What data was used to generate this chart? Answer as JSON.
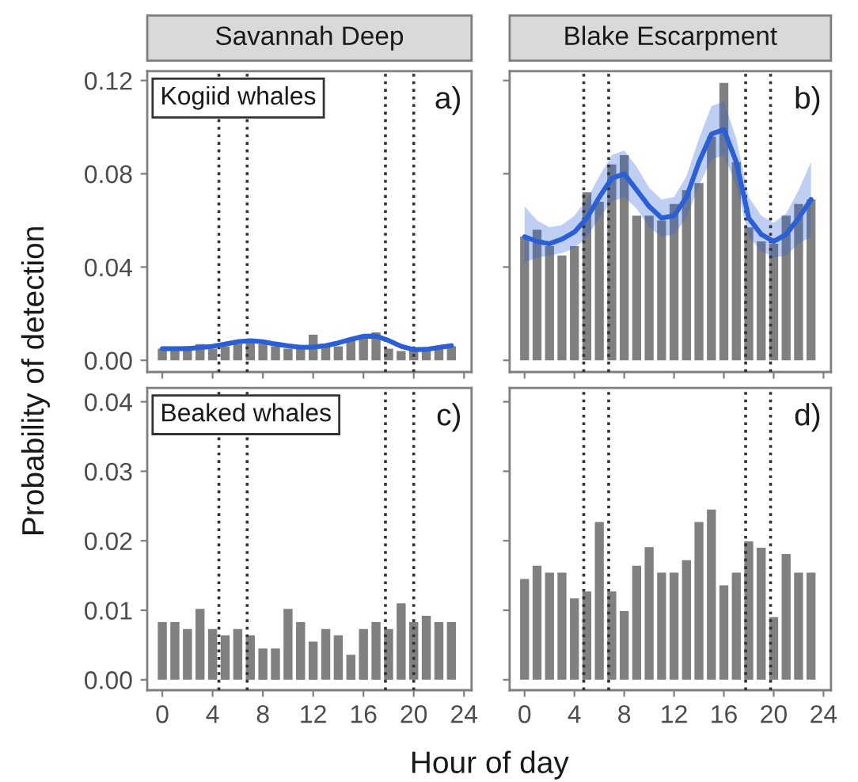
{
  "chart_data": [
    {
      "type": "bar",
      "title": "Savannah Deep",
      "ylabel": "Probability of detection",
      "annotations": [
        "Kogiid whales",
        "a)"
      ],
      "tick_labels": "y",
      "x": [
        0,
        1,
        2,
        3,
        4,
        5,
        6,
        7,
        8,
        9,
        10,
        11,
        12,
        13,
        14,
        15,
        16,
        17,
        18,
        19,
        20,
        21,
        22,
        23
      ],
      "series": [
        {
          "color": "#808080",
          "values": [
            0.005,
            0.005,
            0.006,
            0.007,
            0.005,
            0.006,
            0.007,
            0.009,
            0.007,
            0.006,
            0.005,
            0.005,
            0.011,
            0.006,
            0.006,
            0.009,
            0.011,
            0.012,
            0.005,
            0.004,
            0.005,
            0.005,
            0.006,
            0.006
          ]
        },
        {
          "type": "line",
          "color": "#2a5fd6",
          "x": [
            0,
            1,
            2,
            3,
            4,
            5,
            6,
            7,
            8,
            9,
            10,
            11,
            12,
            13,
            14,
            15,
            16,
            17,
            18,
            19,
            20,
            21,
            22,
            23
          ],
          "values": [
            0.005,
            0.005,
            0.005,
            0.0055,
            0.006,
            0.007,
            0.008,
            0.0084,
            0.008,
            0.007,
            0.0062,
            0.0056,
            0.0057,
            0.0063,
            0.0075,
            0.009,
            0.0103,
            0.0104,
            0.0085,
            0.006,
            0.0046,
            0.0047,
            0.0055,
            0.0063
          ],
          "lower": [
            0.004,
            0.004,
            0.004,
            0.0045,
            0.005,
            0.006,
            0.007,
            0.0074,
            0.007,
            0.006,
            0.0052,
            0.0046,
            0.0047,
            0.0053,
            0.0065,
            0.008,
            0.0093,
            0.0094,
            0.0075,
            0.005,
            0.0036,
            0.0037,
            0.0045,
            0.0052
          ],
          "upper": [
            0.006,
            0.006,
            0.006,
            0.0065,
            0.007,
            0.008,
            0.009,
            0.0094,
            0.009,
            0.008,
            0.0072,
            0.0066,
            0.0067,
            0.0073,
            0.0085,
            0.01,
            0.0113,
            0.0114,
            0.0095,
            0.007,
            0.0056,
            0.0057,
            0.0065,
            0.0074
          ]
        }
      ],
      "xlim": [
        -1.2,
        24.6
      ],
      "xticks": [
        0,
        4,
        8,
        12,
        16,
        20,
        24
      ],
      "ylim": [
        -0.005,
        0.124
      ],
      "yticks": [
        {
          "value": 0,
          "label": "0.00"
        },
        {
          "value": 0.04,
          "label": "0.04"
        },
        {
          "value": 0.08,
          "label": "0.08"
        },
        {
          "value": 0.12,
          "label": "0.12"
        }
      ],
      "ref_lines": [
        {
          "axis": "x",
          "value": 4.5,
          "line_style": "dotted",
          "color": "#333333"
        },
        {
          "axis": "x",
          "value": 6.75,
          "line_style": "dotted",
          "color": "#333333"
        },
        {
          "axis": "x",
          "value": 17.75,
          "line_style": "dotted",
          "color": "#333333"
        },
        {
          "axis": "x",
          "value": 20,
          "line_style": "dotted",
          "color": "#333333"
        }
      ]
    },
    {
      "type": "bar",
      "title": "Blake Escarpment",
      "annotations": [
        "b)"
      ],
      "tick_labels": false,
      "x": [
        0,
        1,
        2,
        3,
        4,
        5,
        6,
        7,
        8,
        9,
        10,
        11,
        12,
        13,
        14,
        15,
        16,
        17,
        18,
        19,
        20,
        21,
        22,
        23
      ],
      "series": [
        {
          "color": "#808080",
          "values": [
            0.053,
            0.056,
            0.049,
            0.045,
            0.049,
            0.072,
            0.068,
            0.084,
            0.088,
            0.062,
            0.062,
            0.06,
            0.067,
            0.073,
            0.076,
            0.096,
            0.119,
            0.085,
            0.057,
            0.051,
            0.05,
            0.062,
            0.067,
            0.069
          ]
        },
        {
          "type": "line",
          "color": "#2a5fd6",
          "x": [
            0,
            1,
            2,
            3,
            4,
            5,
            6,
            7,
            8,
            9,
            10,
            11,
            12,
            13,
            14,
            15,
            16,
            17,
            18,
            19,
            20,
            21,
            22,
            23
          ],
          "values": [
            0.053,
            0.051,
            0.05,
            0.052,
            0.055,
            0.061,
            0.07,
            0.078,
            0.08,
            0.073,
            0.066,
            0.061,
            0.062,
            0.07,
            0.085,
            0.097,
            0.099,
            0.085,
            0.061,
            0.054,
            0.051,
            0.054,
            0.061,
            0.069
          ],
          "lower": [
            0.042,
            0.044,
            0.045,
            0.046,
            0.048,
            0.053,
            0.061,
            0.068,
            0.07,
            0.065,
            0.057,
            0.053,
            0.054,
            0.061,
            0.075,
            0.086,
            0.088,
            0.075,
            0.053,
            0.047,
            0.044,
            0.045,
            0.05,
            0.053
          ],
          "upper": [
            0.066,
            0.06,
            0.057,
            0.058,
            0.062,
            0.069,
            0.079,
            0.088,
            0.09,
            0.083,
            0.074,
            0.069,
            0.07,
            0.079,
            0.095,
            0.109,
            0.111,
            0.095,
            0.07,
            0.062,
            0.059,
            0.063,
            0.073,
            0.085
          ]
        }
      ],
      "xlim": [
        -1.2,
        24.6
      ],
      "xticks": [
        0,
        4,
        8,
        12,
        16,
        20,
        24
      ],
      "ylim": [
        -0.005,
        0.124
      ],
      "yticks": [
        0,
        0.04,
        0.08,
        0.12
      ],
      "ref_lines": [
        {
          "axis": "x",
          "value": 4.75,
          "line_style": "dotted",
          "color": "#333333"
        },
        {
          "axis": "x",
          "value": 6.75,
          "line_style": "dotted",
          "color": "#333333"
        },
        {
          "axis": "x",
          "value": 17.75,
          "line_style": "dotted",
          "color": "#333333"
        },
        {
          "axis": "x",
          "value": 19.75,
          "line_style": "dotted",
          "color": "#333333"
        }
      ]
    },
    {
      "type": "bar",
      "xlabel": "Hour of day",
      "annotations": [
        "Beaked whales",
        "c)"
      ],
      "x": [
        0,
        1,
        2,
        3,
        4,
        5,
        6,
        7,
        8,
        9,
        10,
        11,
        12,
        13,
        14,
        15,
        16,
        17,
        18,
        19,
        20,
        21,
        22,
        23
      ],
      "series": [
        {
          "color": "#808080",
          "values": [
            0.0083,
            0.0083,
            0.0073,
            0.0102,
            0.0073,
            0.0064,
            0.0073,
            0.0064,
            0.0045,
            0.0045,
            0.0102,
            0.0083,
            0.0055,
            0.0073,
            0.0064,
            0.0036,
            0.0073,
            0.0083,
            0.0073,
            0.011,
            0.0083,
            0.0092,
            0.0083,
            0.0083
          ]
        }
      ],
      "xlim": [
        -1.2,
        24.6
      ],
      "xticks": [
        0,
        4,
        8,
        12,
        16,
        20,
        24
      ],
      "ylim": [
        -0.0015,
        0.042
      ],
      "yticks": [
        {
          "value": 0,
          "label": "0.00"
        },
        {
          "value": 0.01,
          "label": "0.01"
        },
        {
          "value": 0.02,
          "label": "0.02"
        },
        {
          "value": 0.03,
          "label": "0.03"
        },
        {
          "value": 0.04,
          "label": "0.04"
        }
      ],
      "ref_lines": [
        {
          "axis": "x",
          "value": 4.5,
          "line_style": "dotted",
          "color": "#333333"
        },
        {
          "axis": "x",
          "value": 6.75,
          "line_style": "dotted",
          "color": "#333333"
        },
        {
          "axis": "x",
          "value": 17.75,
          "line_style": "dotted",
          "color": "#333333"
        },
        {
          "axis": "x",
          "value": 20,
          "line_style": "dotted",
          "color": "#333333"
        }
      ]
    },
    {
      "type": "bar",
      "annotations": [
        "d)"
      ],
      "tick_labels": "x",
      "x": [
        0,
        1,
        2,
        3,
        4,
        5,
        6,
        7,
        8,
        9,
        10,
        11,
        12,
        13,
        14,
        15,
        16,
        17,
        18,
        19,
        20,
        21,
        22,
        23
      ],
      "series": [
        {
          "color": "#808080",
          "values": [
            0.0145,
            0.0164,
            0.0154,
            0.0154,
            0.0117,
            0.0127,
            0.0227,
            0.0127,
            0.0099,
            0.0164,
            0.0191,
            0.0154,
            0.0154,
            0.0172,
            0.0227,
            0.0245,
            0.0136,
            0.0154,
            0.0199,
            0.019,
            0.009,
            0.0181,
            0.0154,
            0.0154
          ]
        }
      ],
      "xlim": [
        -1.2,
        24.6
      ],
      "xticks": [
        0,
        4,
        8,
        12,
        16,
        20,
        24
      ],
      "ylim": [
        -0.0015,
        0.042
      ],
      "yticks": [
        0,
        0.01,
        0.02,
        0.03,
        0.04
      ],
      "ref_lines": [
        {
          "axis": "x",
          "value": 4.75,
          "line_style": "dotted",
          "color": "#333333"
        },
        {
          "axis": "x",
          "value": 6.75,
          "line_style": "dotted",
          "color": "#333333"
        },
        {
          "axis": "x",
          "value": 17.75,
          "line_style": "dotted",
          "color": "#333333"
        },
        {
          "axis": "x",
          "value": 19.75,
          "line_style": "dotted",
          "color": "#333333"
        }
      ]
    }
  ]
}
